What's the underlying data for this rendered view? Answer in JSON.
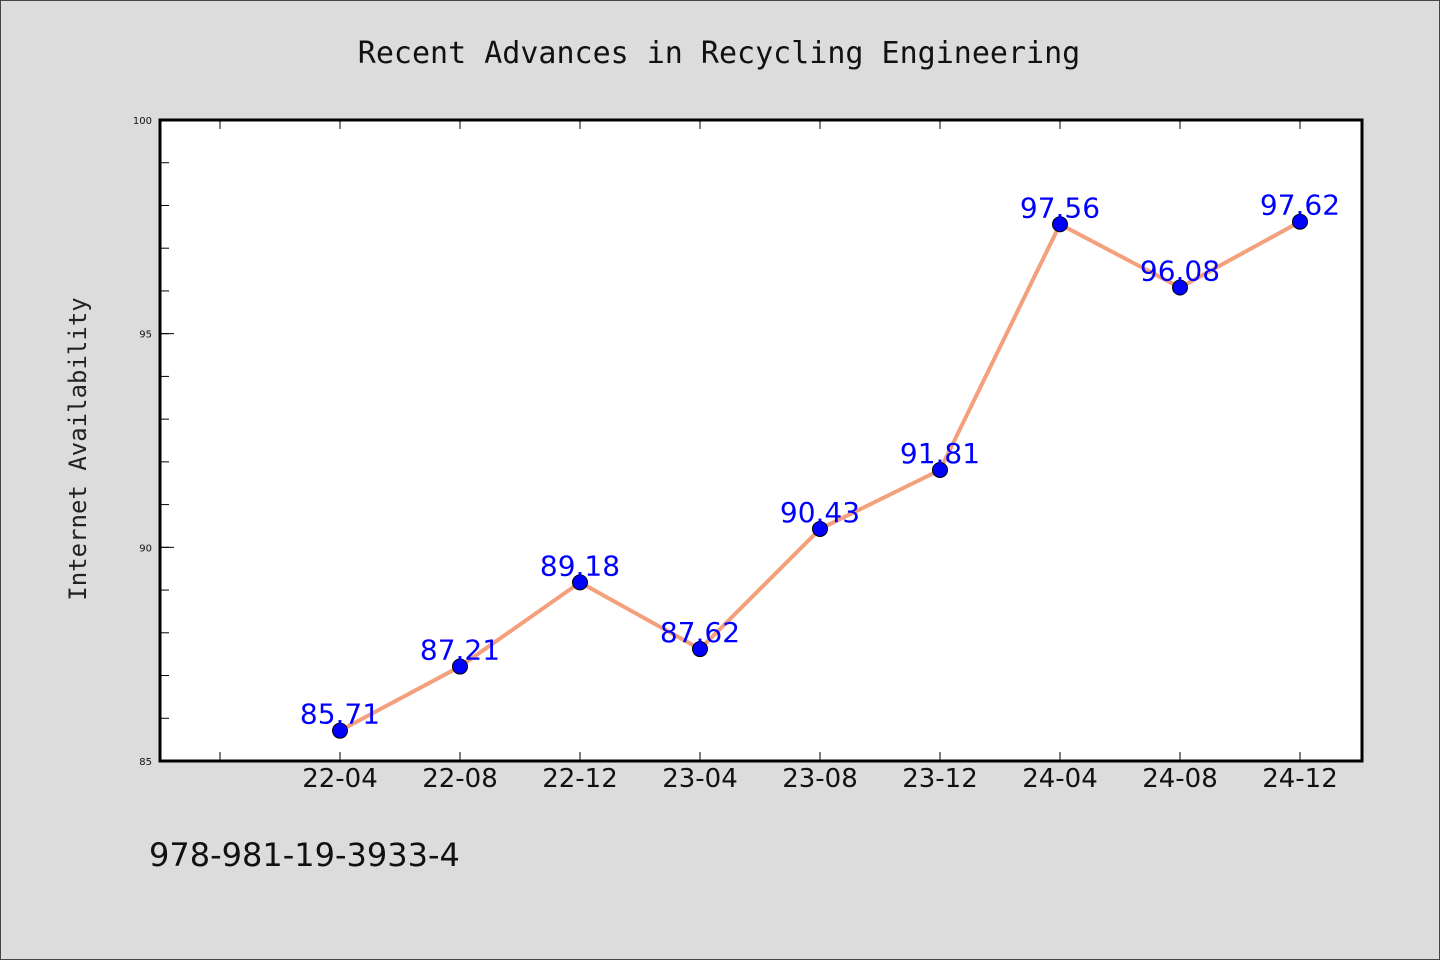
{
  "footer": {
    "code": "978-981-19-3933-4"
  },
  "colors": {
    "background": "#dcdcdc",
    "plot_background": "#ffffff",
    "line": "#f4a07c",
    "marker": "#0000ff",
    "label": "#0000ff"
  },
  "chart_data": {
    "type": "line",
    "title": "Recent Advances in Recycling Engineering",
    "xlabel": "",
    "ylabel": "Internet Availability",
    "categories": [
      "22-04",
      "22-08",
      "22-12",
      "23-04",
      "23-08",
      "23-12",
      "24-04",
      "24-08",
      "24-12"
    ],
    "series": [
      {
        "values": [
          85.71,
          87.21,
          89.18,
          87.62,
          90.43,
          91.81,
          97.56,
          96.08,
          97.62
        ],
        "value_labels": [
          "85.71",
          "87.21",
          "89.18",
          "87.62",
          "90.43",
          "91.81",
          "97.56",
          "96.08",
          "97.62"
        ]
      }
    ],
    "ylim": [
      85,
      100
    ],
    "yticks": [
      85,
      90,
      95,
      100
    ],
    "ytick_labels": [
      "85",
      "90",
      "95",
      "100"
    ],
    "y_minor_step": 1,
    "grid": false,
    "legend": "none",
    "markers": "circle"
  }
}
